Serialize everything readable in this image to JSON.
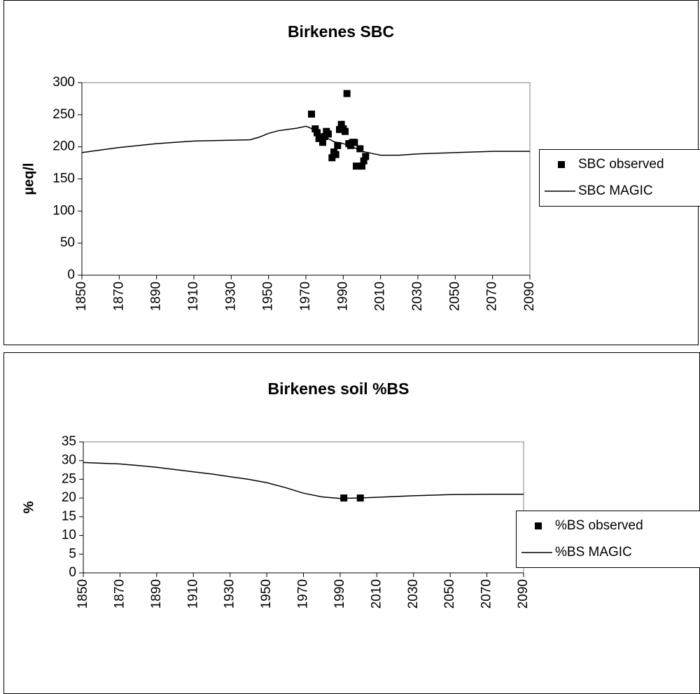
{
  "chart_data": [
    {
      "type": "line",
      "title": "Birkenes  SBC",
      "y_label": "µeq/l",
      "legend": "right",
      "xlim": [
        1850,
        2090
      ],
      "xticks": [
        1850,
        1870,
        1890,
        1910,
        1930,
        1950,
        1970,
        1990,
        2010,
        2030,
        2050,
        2070,
        2090
      ],
      "ylim": [
        0,
        300
      ],
      "yticks": [
        0,
        50,
        100,
        150,
        200,
        250,
        300
      ],
      "series": [
        {
          "name": "SBC observed",
          "color": "#000000",
          "mode": "markers",
          "x": [
            1973,
            1975,
            1976,
            1977,
            1979,
            1980,
            1981,
            1982,
            1984,
            1985,
            1986,
            1987,
            1988,
            1989,
            1990,
            1991,
            1992,
            1993,
            1994,
            1995,
            1996,
            1997,
            1999,
            2000,
            2001,
            2002
          ],
          "values": [
            251,
            228,
            222,
            213,
            207,
            216,
            224,
            220,
            183,
            192,
            188,
            202,
            227,
            235,
            228,
            224,
            283,
            205,
            202,
            207,
            207,
            170,
            197,
            170,
            178,
            185
          ]
        },
        {
          "name": "SBC MAGIC",
          "color": "#000000",
          "mode": "line",
          "x": [
            1850,
            1870,
            1890,
            1910,
            1940,
            1945,
            1950,
            1955,
            1960,
            1965,
            1970,
            1972,
            1975,
            1980,
            1985,
            1990,
            1995,
            2000,
            2005,
            2010,
            2020,
            2030,
            2050,
            2070,
            2090
          ],
          "values": [
            191,
            199,
            205,
            209,
            211,
            215,
            221,
            225,
            227,
            229,
            232,
            230,
            225,
            216,
            208,
            205,
            200,
            193,
            190,
            187,
            187,
            189,
            191,
            193,
            193
          ]
        }
      ]
    },
    {
      "type": "line",
      "title": "Birkenes soil %BS",
      "y_label": "%",
      "legend": "right",
      "xlim": [
        1850,
        2090
      ],
      "xticks": [
        1850,
        1870,
        1890,
        1910,
        1930,
        1950,
        1970,
        1990,
        2010,
        2030,
        2050,
        2070,
        2090
      ],
      "ylim": [
        0,
        35
      ],
      "yticks": [
        0,
        5,
        10,
        15,
        20,
        25,
        30,
        35
      ],
      "series": [
        {
          "name": "%BS observed",
          "color": "#000000",
          "mode": "markers",
          "x": [
            1992,
            2001
          ],
          "values": [
            20,
            20
          ]
        },
        {
          "name": "%BS MAGIC",
          "color": "#000000",
          "mode": "line",
          "x": [
            1850,
            1860,
            1870,
            1880,
            1890,
            1900,
            1910,
            1920,
            1930,
            1940,
            1950,
            1960,
            1970,
            1980,
            1990,
            2000,
            2010,
            2020,
            2030,
            2050,
            2070,
            2090
          ],
          "values": [
            29.5,
            29.3,
            29.1,
            28.7,
            28.2,
            27.6,
            27.0,
            26.4,
            25.7,
            25.0,
            24.1,
            22.8,
            21.3,
            20.3,
            19.9,
            20.0,
            20.2,
            20.4,
            20.6,
            20.9,
            21.0,
            21.0
          ]
        }
      ]
    }
  ]
}
